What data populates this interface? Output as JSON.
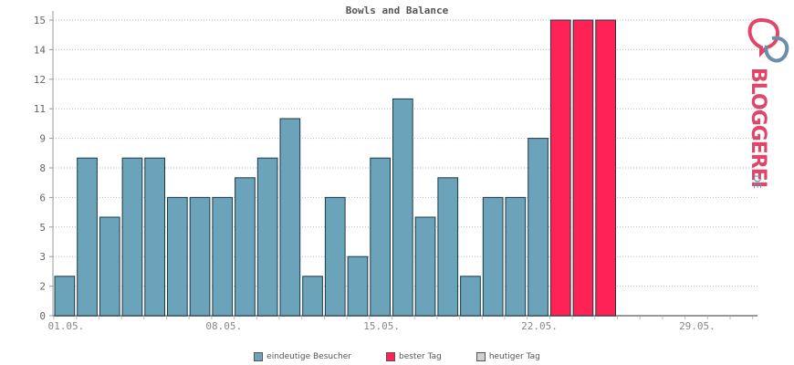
{
  "chart_data": {
    "type": "bar",
    "title": "Bowls and Balance",
    "xlabel": "",
    "ylabel": "",
    "ylim": [
      0,
      15
    ],
    "y_ticks": [
      "0",
      "2",
      "3",
      "5",
      "6",
      "8",
      "9",
      "11",
      "12",
      "14",
      "15"
    ],
    "y_tick_values": [
      0,
      1.5,
      3,
      4.5,
      6,
      7.5,
      9,
      10.5,
      12,
      13.5,
      15
    ],
    "x_tick_labels": [
      "01.05.",
      "08.05.",
      "15.05.",
      "22.05.",
      "29.05."
    ],
    "x_tick_days": [
      1,
      8,
      15,
      22,
      29
    ],
    "days_in_range": 31,
    "grid": true,
    "series": [
      {
        "name": "eindeutige Besucher",
        "color": "#6ba3bb",
        "values": [
          2,
          8,
          5,
          8,
          8,
          6,
          6,
          6,
          7,
          8,
          10,
          2,
          6,
          3,
          8,
          11,
          5,
          7,
          2,
          6,
          6,
          9,
          0,
          0,
          0,
          0,
          0,
          0,
          0,
          0,
          0
        ]
      },
      {
        "name": "bester Tag",
        "color": "#ff2255",
        "values": [
          0,
          0,
          0,
          0,
          0,
          0,
          0,
          0,
          0,
          0,
          0,
          0,
          0,
          0,
          0,
          0,
          0,
          0,
          0,
          0,
          0,
          0,
          15,
          15,
          15,
          0,
          0,
          0,
          0,
          0,
          0
        ]
      }
    ],
    "legend": [
      {
        "label": "eindeutige Besucher",
        "color": "#6ba3bb"
      },
      {
        "label": "bester Tag",
        "color": "#ff2255"
      },
      {
        "label": "heutiger Tag",
        "color": "#d0d0d0"
      }
    ],
    "legend_position": "bottom"
  },
  "logo": {
    "text": "BLOGGEREI",
    "suffix": ".DE"
  }
}
